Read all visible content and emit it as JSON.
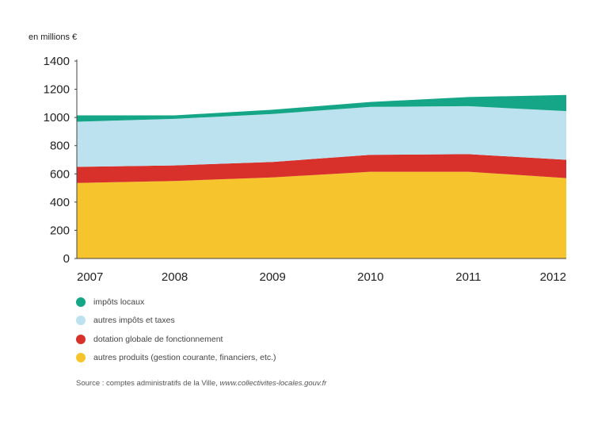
{
  "chart_data": {
    "type": "area",
    "stacked": true,
    "unit_label": "en millions €",
    "x": [
      "2007",
      "2008",
      "2009",
      "2010",
      "2011",
      "2012"
    ],
    "ylim": [
      0,
      1400
    ],
    "yticks": [
      "0",
      "200",
      "400",
      "600",
      "800",
      "1000",
      "1200",
      "1400"
    ],
    "grid": false,
    "legend_position": "bottom-left",
    "series": [
      {
        "name": "autres produits (gestion courante, financiers, etc.)",
        "color": "#f6c42d",
        "values": [
          535,
          550,
          575,
          615,
          615,
          570
        ]
      },
      {
        "name": "dotation globale de fonctionnement",
        "color": "#d8312b",
        "values": [
          115,
          110,
          110,
          120,
          125,
          130
        ]
      },
      {
        "name": "autres impôts et taxes",
        "color": "#bde2ef",
        "values": [
          320,
          330,
          340,
          340,
          340,
          345
        ]
      },
      {
        "name": "impôts locaux",
        "color": "#14a686",
        "values": [
          45,
          25,
          30,
          35,
          65,
          115
        ]
      }
    ],
    "legend_order": [
      3,
      2,
      1,
      0
    ],
    "source": {
      "prefix": "Source : comptes administratifs de la Ville, ",
      "site": "www.collectivites-locales.gouv.fr"
    }
  }
}
